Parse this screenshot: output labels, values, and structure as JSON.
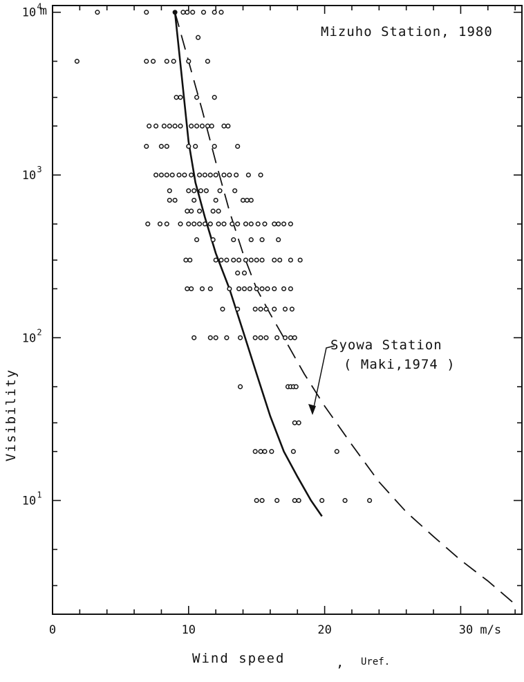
{
  "chart_data": {
    "type": "scatter",
    "x_unit_label": "m/s",
    "y_unit_label": "m",
    "xlabel_main": "Wind  speed",
    "xlabel_sep": ",",
    "xlabel_sym": "Uref.",
    "ylabel": "Visibility",
    "xlim": [
      0,
      34.5
    ],
    "ylim": [
      2,
      11000
    ],
    "y_scale": "log",
    "x_ticks": [
      0,
      10,
      20,
      30
    ],
    "x_tick_labels": [
      "0",
      "10",
      "20",
      "30 m/s"
    ],
    "y_tick_labels": [
      {
        "value": 10,
        "base": "10",
        "exp": "1"
      },
      {
        "value": 100,
        "base": "10",
        "exp": "2"
      },
      {
        "value": 1000,
        "base": "10",
        "exp": "3"
      },
      {
        "value": 10000,
        "base": "10",
        "exp": "4"
      }
    ],
    "annotations": {
      "station": "Mizuho Station, 1980",
      "reference_line1": "Syowa Station",
      "reference_line2": "( Maki,1974 )"
    },
    "series": [
      {
        "style": "open-circles",
        "points": [
          [
            3.3,
            10000
          ],
          [
            6.9,
            10000
          ],
          [
            9.6,
            10000
          ],
          [
            9.9,
            10000
          ],
          [
            10.3,
            10000
          ],
          [
            11.1,
            10000
          ],
          [
            11.9,
            10000
          ],
          [
            12.4,
            10000
          ],
          [
            1.8,
            5000
          ],
          [
            6.9,
            5000
          ],
          [
            7.4,
            5000
          ],
          [
            8.4,
            5000
          ],
          [
            8.9,
            5000
          ],
          [
            10.0,
            5000
          ],
          [
            11.4,
            5000
          ],
          [
            10.7,
            7000
          ],
          [
            9.1,
            3000
          ],
          [
            9.4,
            3000
          ],
          [
            10.6,
            3000
          ],
          [
            11.9,
            3000
          ],
          [
            7.1,
            2000
          ],
          [
            7.6,
            2000
          ],
          [
            8.2,
            2000
          ],
          [
            8.6,
            2000
          ],
          [
            9.0,
            2000
          ],
          [
            9.4,
            2000
          ],
          [
            10.2,
            2000
          ],
          [
            10.6,
            2000
          ],
          [
            11.0,
            2000
          ],
          [
            11.4,
            2000
          ],
          [
            11.7,
            2000
          ],
          [
            12.6,
            2000
          ],
          [
            12.9,
            2000
          ],
          [
            6.9,
            1500
          ],
          [
            8.0,
            1500
          ],
          [
            8.4,
            1500
          ],
          [
            10.0,
            1500
          ],
          [
            10.5,
            1500
          ],
          [
            11.9,
            1500
          ],
          [
            13.6,
            1500
          ],
          [
            7.6,
            1000
          ],
          [
            8.0,
            1000
          ],
          [
            8.4,
            1000
          ],
          [
            8.8,
            1000
          ],
          [
            9.3,
            1000
          ],
          [
            9.7,
            1000
          ],
          [
            10.2,
            1000
          ],
          [
            10.8,
            1000
          ],
          [
            11.2,
            1000
          ],
          [
            11.6,
            1000
          ],
          [
            12.0,
            1000
          ],
          [
            12.6,
            1000
          ],
          [
            13.0,
            1000
          ],
          [
            13.5,
            1000
          ],
          [
            14.4,
            1000
          ],
          [
            15.3,
            1000
          ],
          [
            8.6,
            800
          ],
          [
            10.0,
            800
          ],
          [
            10.4,
            800
          ],
          [
            10.9,
            800
          ],
          [
            11.3,
            800
          ],
          [
            12.3,
            800
          ],
          [
            13.4,
            800
          ],
          [
            8.6,
            700
          ],
          [
            9.0,
            700
          ],
          [
            10.4,
            700
          ],
          [
            12.0,
            700
          ],
          [
            14.0,
            700
          ],
          [
            14.3,
            700
          ],
          [
            14.6,
            700
          ],
          [
            9.9,
            600
          ],
          [
            10.2,
            600
          ],
          [
            10.8,
            600
          ],
          [
            11.8,
            600
          ],
          [
            12.2,
            600
          ],
          [
            7.0,
            500
          ],
          [
            7.9,
            500
          ],
          [
            8.4,
            500
          ],
          [
            9.4,
            500
          ],
          [
            10.0,
            500
          ],
          [
            10.4,
            500
          ],
          [
            10.8,
            500
          ],
          [
            11.2,
            500
          ],
          [
            11.6,
            500
          ],
          [
            12.2,
            500
          ],
          [
            12.6,
            500
          ],
          [
            13.2,
            500
          ],
          [
            13.6,
            500
          ],
          [
            14.2,
            500
          ],
          [
            14.6,
            500
          ],
          [
            15.1,
            500
          ],
          [
            15.6,
            500
          ],
          [
            16.3,
            500
          ],
          [
            16.6,
            500
          ],
          [
            17.0,
            500
          ],
          [
            17.5,
            500
          ],
          [
            10.6,
            400
          ],
          [
            11.8,
            400
          ],
          [
            13.3,
            400
          ],
          [
            14.6,
            400
          ],
          [
            15.4,
            400
          ],
          [
            16.6,
            400
          ],
          [
            9.8,
            300
          ],
          [
            10.1,
            300
          ],
          [
            12.0,
            300
          ],
          [
            12.4,
            300
          ],
          [
            12.8,
            300
          ],
          [
            13.3,
            300
          ],
          [
            13.7,
            300
          ],
          [
            14.2,
            300
          ],
          [
            14.6,
            300
          ],
          [
            15.0,
            300
          ],
          [
            15.4,
            300
          ],
          [
            16.3,
            300
          ],
          [
            16.7,
            300
          ],
          [
            17.5,
            300
          ],
          [
            18.2,
            300
          ],
          [
            13.6,
            250
          ],
          [
            14.1,
            250
          ],
          [
            9.9,
            200
          ],
          [
            10.2,
            200
          ],
          [
            11.0,
            200
          ],
          [
            11.6,
            200
          ],
          [
            13.0,
            200
          ],
          [
            13.7,
            200
          ],
          [
            14.1,
            200
          ],
          [
            14.5,
            200
          ],
          [
            15.0,
            200
          ],
          [
            15.4,
            200
          ],
          [
            15.8,
            200
          ],
          [
            16.3,
            200
          ],
          [
            17.0,
            200
          ],
          [
            17.5,
            200
          ],
          [
            12.5,
            150
          ],
          [
            13.6,
            150
          ],
          [
            14.9,
            150
          ],
          [
            15.3,
            150
          ],
          [
            15.7,
            150
          ],
          [
            16.3,
            150
          ],
          [
            17.1,
            150
          ],
          [
            17.6,
            150
          ],
          [
            10.4,
            100
          ],
          [
            11.6,
            100
          ],
          [
            12.0,
            100
          ],
          [
            12.8,
            100
          ],
          [
            13.8,
            100
          ],
          [
            14.9,
            100
          ],
          [
            15.3,
            100
          ],
          [
            15.7,
            100
          ],
          [
            16.5,
            100
          ],
          [
            17.1,
            100
          ],
          [
            17.5,
            100
          ],
          [
            17.8,
            100
          ],
          [
            13.8,
            50
          ],
          [
            17.3,
            50
          ],
          [
            17.5,
            50
          ],
          [
            17.7,
            50
          ],
          [
            17.9,
            50
          ],
          [
            17.8,
            30
          ],
          [
            18.1,
            30
          ],
          [
            14.9,
            20
          ],
          [
            15.3,
            20
          ],
          [
            15.6,
            20
          ],
          [
            16.1,
            20
          ],
          [
            17.7,
            20
          ],
          [
            20.9,
            20
          ],
          [
            15.0,
            10
          ],
          [
            15.4,
            10
          ],
          [
            16.5,
            10
          ],
          [
            17.8,
            10
          ],
          [
            18.1,
            10
          ],
          [
            19.8,
            10
          ],
          [
            21.5,
            10
          ],
          [
            23.3,
            10
          ]
        ]
      },
      {
        "name": "Mizuho Station, 1980",
        "style": "solid-curve",
        "points": [
          [
            9.0,
            10000
          ],
          [
            9.5,
            4000
          ],
          [
            10.0,
            1600
          ],
          [
            10.5,
            900
          ],
          [
            11.2,
            550
          ],
          [
            12.0,
            330
          ],
          [
            13.0,
            200
          ],
          [
            14.0,
            110
          ],
          [
            15.0,
            60
          ],
          [
            16.0,
            33
          ],
          [
            17.0,
            20
          ],
          [
            18.0,
            14
          ],
          [
            19.0,
            10
          ],
          [
            19.8,
            8
          ]
        ]
      },
      {
        "name": "Syowa Station",
        "style": "dashed-curve",
        "points": [
          [
            9.0,
            10000
          ],
          [
            10.0,
            5000
          ],
          [
            11.0,
            2500
          ],
          [
            12.0,
            1200
          ],
          [
            13.0,
            600
          ],
          [
            14.0,
            330
          ],
          [
            15.0,
            200
          ],
          [
            16.0,
            140
          ],
          [
            17.0,
            100
          ],
          [
            18.5,
            60
          ],
          [
            20.0,
            38
          ],
          [
            22.0,
            22
          ],
          [
            24.0,
            13
          ],
          [
            26.0,
            8.5
          ],
          [
            28.0,
            6
          ],
          [
            30.0,
            4.3
          ],
          [
            32.0,
            3.2
          ],
          [
            34.0,
            2.3
          ]
        ]
      }
    ]
  }
}
